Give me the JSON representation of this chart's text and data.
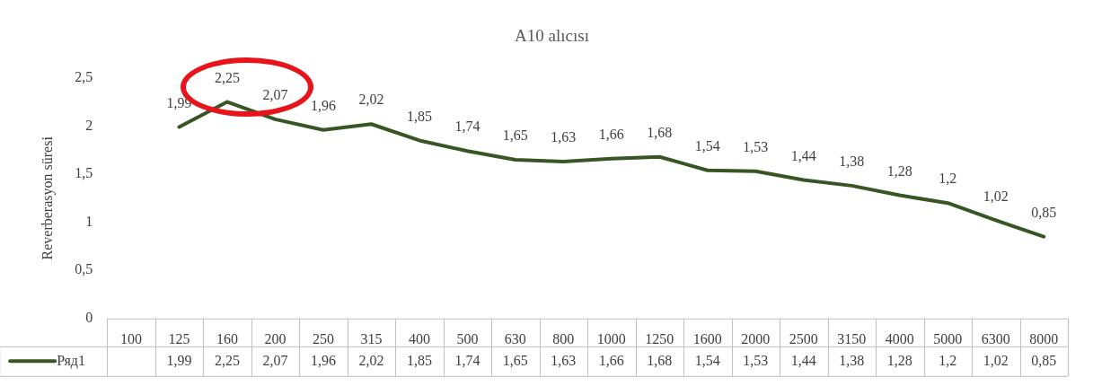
{
  "chart_data": {
    "type": "line",
    "title": "A10 alıcısı",
    "ylabel": "Reverberasyon süresi",
    "categories": [
      "100",
      "125",
      "160",
      "200",
      "250",
      "315",
      "400",
      "500",
      "630",
      "800",
      "1000",
      "1250",
      "1600",
      "2000",
      "2500",
      "3150",
      "4000",
      "5000",
      "6300",
      "8000"
    ],
    "series": [
      {
        "name": "Ряд1",
        "color": "#375623",
        "values": [
          null,
          1.99,
          2.25,
          2.07,
          1.96,
          2.02,
          1.85,
          1.74,
          1.65,
          1.63,
          1.66,
          1.68,
          1.54,
          1.53,
          1.44,
          1.38,
          1.28,
          1.2,
          1.02,
          0.85
        ],
        "value_labels": [
          null,
          "1,99",
          "2,25",
          "2,07",
          "1,96",
          "2,02",
          "1,85",
          "1,74",
          "1,65",
          "1,63",
          "1,66",
          "1,68",
          "1,54",
          "1,53",
          "1,44",
          "1,38",
          "1,28",
          "1,2",
          "1,02",
          "0,85"
        ]
      }
    ],
    "ylim": [
      0,
      2.5
    ],
    "yticks": [
      0,
      {
        "value": 0.5,
        "label": "0,5"
      },
      1,
      {
        "value": 1.5,
        "label": "1,5"
      },
      2,
      {
        "value": 2.5,
        "label": "2,5"
      }
    ],
    "grid": false,
    "legend": "bottom",
    "marker": "none",
    "line_style": "solid"
  }
}
